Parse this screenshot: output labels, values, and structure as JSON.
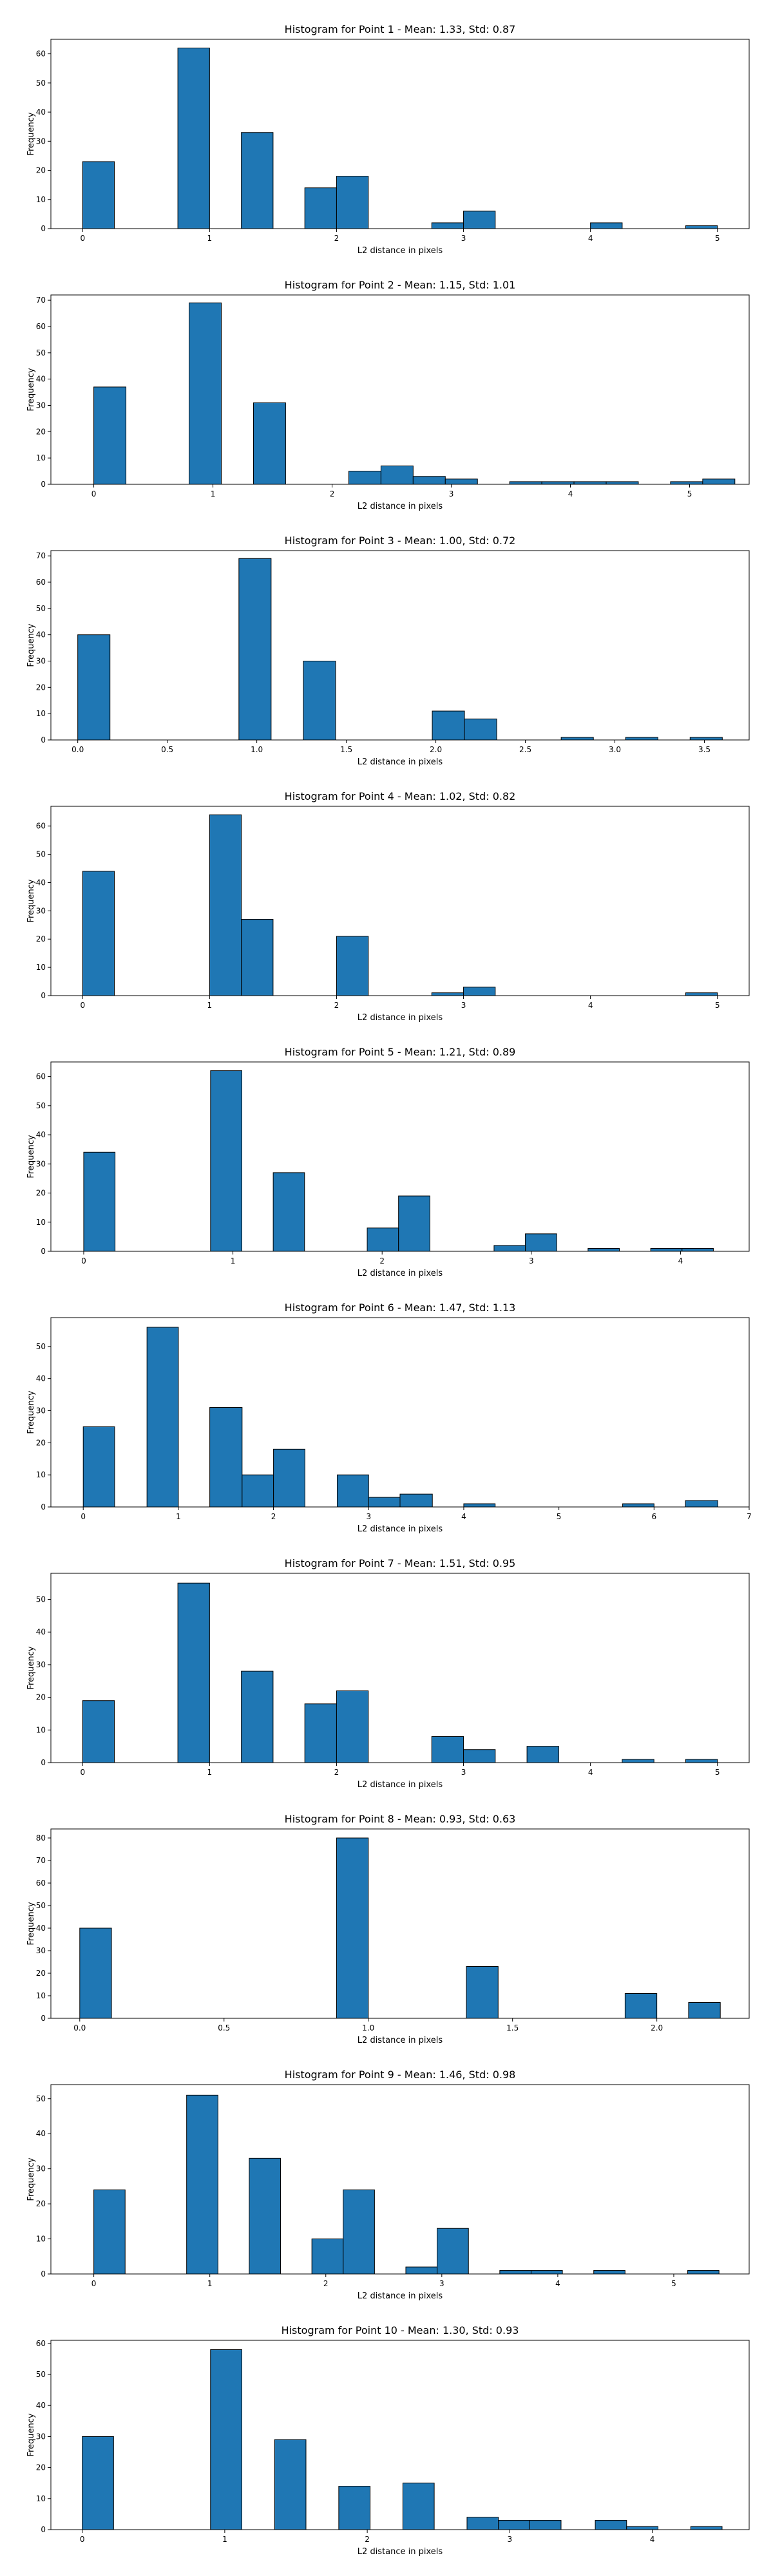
{
  "style": {
    "bar_color": "#1f77b4",
    "edge_color": "#000000",
    "background": "#ffffff"
  },
  "chart_data": [
    {
      "type": "bar",
      "title": "Histogram for Point 1 - Mean: 1.33, Std: 0.87",
      "xlabel": "L2 distance in pixels",
      "ylabel": "Frequency",
      "xlim": [
        -0.25,
        5.25
      ],
      "ylim": [
        0,
        65
      ],
      "xticks": [
        0,
        1,
        2,
        3,
        4,
        5
      ],
      "xtick_labels": [
        "0",
        "1",
        "2",
        "3",
        "4",
        "5"
      ],
      "yticks": [
        0,
        10,
        20,
        30,
        40,
        50,
        60
      ],
      "ytick_labels": [
        "0",
        "10",
        "20",
        "30",
        "40",
        "50",
        "60"
      ],
      "grid": false,
      "bars": [
        {
          "x0": 0.0,
          "x1": 0.25,
          "value": 23
        },
        {
          "x0": 0.75,
          "x1": 1.0,
          "value": 62
        },
        {
          "x0": 1.25,
          "x1": 1.5,
          "value": 33
        },
        {
          "x0": 1.75,
          "x1": 2.0,
          "value": 14
        },
        {
          "x0": 2.0,
          "x1": 2.25,
          "value": 18
        },
        {
          "x0": 2.75,
          "x1": 3.0,
          "value": 2
        },
        {
          "x0": 3.0,
          "x1": 3.25,
          "value": 6
        },
        {
          "x0": 4.0,
          "x1": 4.25,
          "value": 2
        },
        {
          "x0": 4.75,
          "x1": 5.0,
          "value": 1
        }
      ]
    },
    {
      "type": "bar",
      "title": "Histogram for Point 2 - Mean: 1.15, Std: 1.01",
      "xlabel": "L2 distance in pixels",
      "ylabel": "Frequency",
      "xlim": [
        -0.36,
        5.5
      ],
      "ylim": [
        0,
        72
      ],
      "xticks": [
        0,
        1,
        2,
        3,
        4,
        5
      ],
      "xtick_labels": [
        "0",
        "1",
        "2",
        "3",
        "4",
        "5"
      ],
      "yticks": [
        0,
        10,
        20,
        30,
        40,
        50,
        60,
        70
      ],
      "ytick_labels": [
        "0",
        "10",
        "20",
        "30",
        "40",
        "50",
        "60",
        "70"
      ],
      "grid": false,
      "bars": [
        {
          "x0": 0.0,
          "x1": 0.27,
          "value": 37
        },
        {
          "x0": 0.8,
          "x1": 1.07,
          "value": 69
        },
        {
          "x0": 1.34,
          "x1": 1.61,
          "value": 31
        },
        {
          "x0": 2.14,
          "x1": 2.41,
          "value": 5
        },
        {
          "x0": 2.41,
          "x1": 2.68,
          "value": 7
        },
        {
          "x0": 2.68,
          "x1": 2.95,
          "value": 3
        },
        {
          "x0": 2.95,
          "x1": 3.22,
          "value": 2
        },
        {
          "x0": 3.49,
          "x1": 3.76,
          "value": 1
        },
        {
          "x0": 3.76,
          "x1": 4.03,
          "value": 1
        },
        {
          "x0": 4.03,
          "x1": 4.3,
          "value": 1
        },
        {
          "x0": 4.3,
          "x1": 4.57,
          "value": 1
        },
        {
          "x0": 4.84,
          "x1": 5.11,
          "value": 1
        },
        {
          "x0": 5.11,
          "x1": 5.38,
          "value": 2
        }
      ]
    },
    {
      "type": "bar",
      "title": "Histogram for Point 3 - Mean: 1.00, Std: 0.72",
      "xlabel": "L2 distance in pixels",
      "ylabel": "Frequency",
      "xlim": [
        -0.15,
        3.75
      ],
      "ylim": [
        0,
        72
      ],
      "xticks": [
        0.0,
        0.5,
        1.0,
        1.5,
        2.0,
        2.5,
        3.0,
        3.5
      ],
      "xtick_labels": [
        "0.0",
        "0.5",
        "1.0",
        "1.5",
        "2.0",
        "2.5",
        "3.0",
        "3.5"
      ],
      "yticks": [
        0,
        10,
        20,
        30,
        40,
        50,
        60,
        70
      ],
      "ytick_labels": [
        "0",
        "10",
        "20",
        "30",
        "40",
        "50",
        "60",
        "70"
      ],
      "grid": false,
      "bars": [
        {
          "x0": 0.0,
          "x1": 0.18,
          "value": 40
        },
        {
          "x0": 0.9,
          "x1": 1.08,
          "value": 69
        },
        {
          "x0": 1.26,
          "x1": 1.44,
          "value": 30
        },
        {
          "x0": 1.98,
          "x1": 2.16,
          "value": 11
        },
        {
          "x0": 2.16,
          "x1": 2.34,
          "value": 8
        },
        {
          "x0": 2.7,
          "x1": 2.88,
          "value": 1
        },
        {
          "x0": 3.06,
          "x1": 3.24,
          "value": 1
        },
        {
          "x0": 3.42,
          "x1": 3.6,
          "value": 1
        }
      ]
    },
    {
      "type": "bar",
      "title": "Histogram for Point 4 - Mean: 1.02, Std: 0.82",
      "xlabel": "L2 distance in pixels",
      "ylabel": "Frequency",
      "xlim": [
        -0.25,
        5.25
      ],
      "ylim": [
        0,
        67
      ],
      "xticks": [
        0,
        1,
        2,
        3,
        4,
        5
      ],
      "xtick_labels": [
        "0",
        "1",
        "2",
        "3",
        "4",
        "5"
      ],
      "yticks": [
        0,
        10,
        20,
        30,
        40,
        50,
        60
      ],
      "ytick_labels": [
        "0",
        "10",
        "20",
        "30",
        "40",
        "50",
        "60"
      ],
      "grid": false,
      "bars": [
        {
          "x0": 0.0,
          "x1": 0.25,
          "value": 44
        },
        {
          "x0": 1.0,
          "x1": 1.25,
          "value": 64
        },
        {
          "x0": 1.25,
          "x1": 1.5,
          "value": 27
        },
        {
          "x0": 2.0,
          "x1": 2.25,
          "value": 21
        },
        {
          "x0": 2.75,
          "x1": 3.0,
          "value": 1
        },
        {
          "x0": 3.0,
          "x1": 3.25,
          "value": 3
        },
        {
          "x0": 4.75,
          "x1": 5.0,
          "value": 1
        }
      ]
    },
    {
      "type": "bar",
      "title": "Histogram for Point 5 - Mean: 1.21, Std: 0.89",
      "xlabel": "L2 distance in pixels",
      "ylabel": "Frequency",
      "xlim": [
        -0.22,
        4.46
      ],
      "ylim": [
        0,
        65
      ],
      "xticks": [
        0,
        1,
        2,
        3,
        4
      ],
      "xtick_labels": [
        "0",
        "1",
        "2",
        "3",
        "4"
      ],
      "yticks": [
        0,
        10,
        20,
        30,
        40,
        50,
        60
      ],
      "ytick_labels": [
        "0",
        "10",
        "20",
        "30",
        "40",
        "50",
        "60"
      ],
      "grid": false,
      "bars": [
        {
          "x0": 0.0,
          "x1": 0.21,
          "value": 34
        },
        {
          "x0": 0.85,
          "x1": 1.06,
          "value": 62
        },
        {
          "x0": 1.27,
          "x1": 1.48,
          "value": 27
        },
        {
          "x0": 1.9,
          "x1": 2.11,
          "value": 8
        },
        {
          "x0": 2.11,
          "x1": 2.32,
          "value": 19
        },
        {
          "x0": 2.75,
          "x1": 2.96,
          "value": 2
        },
        {
          "x0": 2.96,
          "x1": 3.17,
          "value": 6
        },
        {
          "x0": 3.38,
          "x1": 3.59,
          "value": 1
        },
        {
          "x0": 3.8,
          "x1": 4.01,
          "value": 1
        },
        {
          "x0": 4.01,
          "x1": 4.22,
          "value": 1
        }
      ]
    },
    {
      "type": "bar",
      "title": "Histogram for Point 6 - Mean: 1.47, Std: 1.13",
      "xlabel": "L2 distance in pixels",
      "ylabel": "Frequency",
      "xlim": [
        -0.34,
        7.0
      ],
      "ylim": [
        0,
        59
      ],
      "xticks": [
        0,
        1,
        2,
        3,
        4,
        5,
        6,
        7
      ],
      "xtick_labels": [
        "0",
        "1",
        "2",
        "3",
        "4",
        "5",
        "6",
        "7"
      ],
      "yticks": [
        0,
        10,
        20,
        30,
        40,
        50
      ],
      "ytick_labels": [
        "0",
        "10",
        "20",
        "30",
        "40",
        "50"
      ],
      "grid": false,
      "bars": [
        {
          "x0": 0.0,
          "x1": 0.33,
          "value": 25
        },
        {
          "x0": 0.67,
          "x1": 1.0,
          "value": 56
        },
        {
          "x0": 1.33,
          "x1": 1.67,
          "value": 31
        },
        {
          "x0": 1.67,
          "x1": 2.0,
          "value": 10
        },
        {
          "x0": 2.0,
          "x1": 2.33,
          "value": 18
        },
        {
          "x0": 2.67,
          "x1": 3.0,
          "value": 10
        },
        {
          "x0": 3.0,
          "x1": 3.33,
          "value": 3
        },
        {
          "x0": 3.33,
          "x1": 3.67,
          "value": 4
        },
        {
          "x0": 4.0,
          "x1": 4.33,
          "value": 1
        },
        {
          "x0": 5.67,
          "x1": 6.0,
          "value": 1
        },
        {
          "x0": 6.33,
          "x1": 6.67,
          "value": 2
        }
      ]
    },
    {
      "type": "bar",
      "title": "Histogram for Point 7 - Mean: 1.51, Std: 0.95",
      "xlabel": "L2 distance in pixels",
      "ylabel": "Frequency",
      "xlim": [
        -0.25,
        5.25
      ],
      "ylim": [
        0,
        58
      ],
      "xticks": [
        0,
        1,
        2,
        3,
        4,
        5
      ],
      "xtick_labels": [
        "0",
        "1",
        "2",
        "3",
        "4",
        "5"
      ],
      "yticks": [
        0,
        10,
        20,
        30,
        40,
        50
      ],
      "ytick_labels": [
        "0",
        "10",
        "20",
        "30",
        "40",
        "50"
      ],
      "grid": false,
      "bars": [
        {
          "x0": 0.0,
          "x1": 0.25,
          "value": 19
        },
        {
          "x0": 0.75,
          "x1": 1.0,
          "value": 55
        },
        {
          "x0": 1.25,
          "x1": 1.5,
          "value": 28
        },
        {
          "x0": 1.75,
          "x1": 2.0,
          "value": 18
        },
        {
          "x0": 2.0,
          "x1": 2.25,
          "value": 22
        },
        {
          "x0": 2.75,
          "x1": 3.0,
          "value": 8
        },
        {
          "x0": 3.0,
          "x1": 3.25,
          "value": 4
        },
        {
          "x0": 3.5,
          "x1": 3.75,
          "value": 5
        },
        {
          "x0": 4.25,
          "x1": 4.5,
          "value": 1
        },
        {
          "x0": 4.75,
          "x1": 5.0,
          "value": 1
        }
      ]
    },
    {
      "type": "bar",
      "title": "Histogram for Point 8 - Mean: 0.93, Std: 0.63",
      "xlabel": "L2 distance in pixels",
      "ylabel": "Frequency",
      "xlim": [
        -0.1,
        2.32
      ],
      "ylim": [
        0,
        84
      ],
      "xticks": [
        0.0,
        0.5,
        1.0,
        1.5,
        2.0
      ],
      "xtick_labels": [
        "0.0",
        "0.5",
        "1.0",
        "1.5",
        "2.0"
      ],
      "yticks": [
        0,
        10,
        20,
        30,
        40,
        50,
        60,
        70,
        80
      ],
      "ytick_labels": [
        "0",
        "10",
        "20",
        "30",
        "40",
        "50",
        "60",
        "70",
        "80"
      ],
      "grid": false,
      "bars": [
        {
          "x0": 0.0,
          "x1": 0.11,
          "value": 40
        },
        {
          "x0": 0.89,
          "x1": 1.0,
          "value": 80
        },
        {
          "x0": 1.34,
          "x1": 1.45,
          "value": 23
        },
        {
          "x0": 1.89,
          "x1": 2.0,
          "value": 11
        },
        {
          "x0": 2.11,
          "x1": 2.22,
          "value": 7
        }
      ]
    },
    {
      "type": "bar",
      "title": "Histogram for Point 9 - Mean: 1.46, Std: 0.98",
      "xlabel": "L2 distance in pixels",
      "ylabel": "Frequency",
      "xlim": [
        -0.37,
        5.65
      ],
      "ylim": [
        0,
        54
      ],
      "xticks": [
        0,
        1,
        2,
        3,
        4,
        5
      ],
      "xtick_labels": [
        "0",
        "1",
        "2",
        "3",
        "4",
        "5"
      ],
      "yticks": [
        0,
        10,
        20,
        30,
        40,
        50
      ],
      "ytick_labels": [
        "0",
        "10",
        "20",
        "30",
        "40",
        "50"
      ],
      "grid": false,
      "bars": [
        {
          "x0": 0.0,
          "x1": 0.27,
          "value": 24
        },
        {
          "x0": 0.8,
          "x1": 1.07,
          "value": 51
        },
        {
          "x0": 1.34,
          "x1": 1.61,
          "value": 33
        },
        {
          "x0": 1.88,
          "x1": 2.15,
          "value": 10
        },
        {
          "x0": 2.15,
          "x1": 2.42,
          "value": 24
        },
        {
          "x0": 2.69,
          "x1": 2.96,
          "value": 2
        },
        {
          "x0": 2.96,
          "x1": 3.23,
          "value": 13
        },
        {
          "x0": 3.5,
          "x1": 3.77,
          "value": 1
        },
        {
          "x0": 3.77,
          "x1": 4.04,
          "value": 1
        },
        {
          "x0": 4.31,
          "x1": 4.58,
          "value": 1
        },
        {
          "x0": 5.12,
          "x1": 5.39,
          "value": 1
        }
      ]
    },
    {
      "type": "bar",
      "title": "Histogram for Point 10 - Mean: 1.30, Std: 0.93",
      "xlabel": "L2 distance in pixels",
      "ylabel": "Frequency",
      "xlim": [
        -0.22,
        4.68
      ],
      "ylim": [
        0,
        61
      ],
      "xticks": [
        0,
        1,
        2,
        3,
        4
      ],
      "xtick_labels": [
        "0",
        "1",
        "2",
        "3",
        "4"
      ],
      "yticks": [
        0,
        10,
        20,
        30,
        40,
        50,
        60
      ],
      "ytick_labels": [
        "0",
        "10",
        "20",
        "30",
        "40",
        "50",
        "60"
      ],
      "grid": false,
      "bars": [
        {
          "x0": 0.0,
          "x1": 0.22,
          "value": 30
        },
        {
          "x0": 0.9,
          "x1": 1.12,
          "value": 58
        },
        {
          "x0": 1.35,
          "x1": 1.57,
          "value": 29
        },
        {
          "x0": 1.8,
          "x1": 2.02,
          "value": 14
        },
        {
          "x0": 2.25,
          "x1": 2.47,
          "value": 15
        },
        {
          "x0": 2.7,
          "x1": 2.92,
          "value": 4
        },
        {
          "x0": 2.92,
          "x1": 3.14,
          "value": 3
        },
        {
          "x0": 3.14,
          "x1": 3.36,
          "value": 3
        },
        {
          "x0": 3.6,
          "x1": 3.82,
          "value": 3
        },
        {
          "x0": 3.82,
          "x1": 4.04,
          "value": 1
        },
        {
          "x0": 4.27,
          "x1": 4.49,
          "value": 1
        }
      ]
    }
  ]
}
